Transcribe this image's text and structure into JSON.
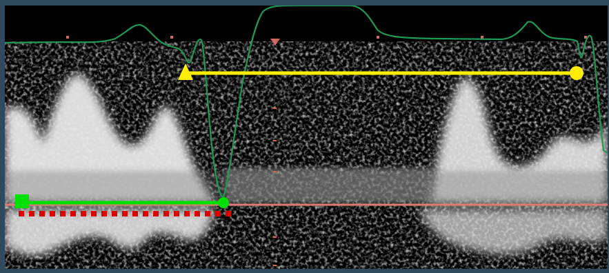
{
  "viewer": {
    "colors": {
      "border": "#2f4a5c",
      "background": "#000000",
      "ecg_trace": "#1f9a55",
      "baseline": "#e07a72",
      "yellow_caliper": "#ffee00",
      "green_caliper": "#00e000",
      "red_dots": "#dd0000",
      "doppler_signal": "#e8e8e8"
    },
    "icons": {
      "triangle_marker": "triangle-marker-icon",
      "circle_marker": "circle-marker-icon",
      "square_marker": "square-marker-icon"
    }
  }
}
